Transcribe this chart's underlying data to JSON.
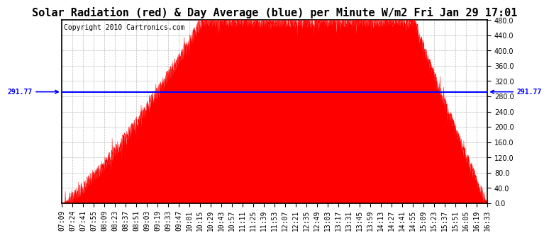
{
  "title": "Solar Radiation (red) & Day Average (blue) per Minute W/m2 Fri Jan 29 17:01",
  "copyright": "Copyright 2010 Cartronics.com",
  "avg_value": 291.77,
  "avg_label": "291.77",
  "y_min": 0.0,
  "y_max": 480.0,
  "y_ticks": [
    0.0,
    40.0,
    80.0,
    120.0,
    160.0,
    200.0,
    240.0,
    280.0,
    320.0,
    360.0,
    400.0,
    440.0,
    480.0
  ],
  "fill_color": "#ff0000",
  "line_color": "#0000ff",
  "bg_color": "#ffffff",
  "grid_color": "#bbbbbb",
  "x_labels": [
    "07:09",
    "07:24",
    "07:41",
    "07:55",
    "08:09",
    "08:23",
    "08:37",
    "08:51",
    "09:03",
    "09:19",
    "09:33",
    "09:47",
    "10:01",
    "10:15",
    "10:29",
    "10:43",
    "10:57",
    "11:11",
    "11:25",
    "11:39",
    "11:53",
    "12:07",
    "12:21",
    "12:35",
    "12:49",
    "13:03",
    "13:17",
    "13:31",
    "13:45",
    "13:59",
    "14:13",
    "14:27",
    "14:41",
    "14:55",
    "15:09",
    "15:23",
    "15:37",
    "15:51",
    "16:05",
    "16:19",
    "16:33"
  ],
  "title_fontsize": 11,
  "tick_fontsize": 7,
  "copyright_fontsize": 7,
  "peak_value": 478,
  "flat_start_time": "10:15",
  "flat_end_time": "14:55",
  "rise_start_time": "07:09",
  "fall_end_time": "16:33"
}
